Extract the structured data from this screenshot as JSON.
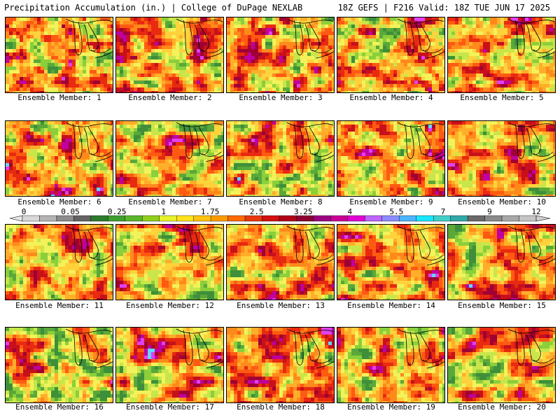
{
  "header": {
    "title": "Precipitation Accumulation (in.) | College of DuPage NEXLAB",
    "run_info": "18Z GEFS | F216 Valid: 18Z TUE JUN 17 2025"
  },
  "panels": [
    {
      "label": "Ensemble Member: 1"
    },
    {
      "label": "Ensemble Member: 2"
    },
    {
      "label": "Ensemble Member: 3"
    },
    {
      "label": "Ensemble Member: 4"
    },
    {
      "label": "Ensemble Member: 5"
    },
    {
      "label": "Ensemble Member: 6"
    },
    {
      "label": "Ensemble Member: 7"
    },
    {
      "label": "Ensemble Member: 8"
    },
    {
      "label": "Ensemble Member: 9"
    },
    {
      "label": "Ensemble Member: 10"
    },
    {
      "label": "Ensemble Member: 11"
    },
    {
      "label": "Ensemble Member: 12"
    },
    {
      "label": "Ensemble Member: 13"
    },
    {
      "label": "Ensemble Member: 14"
    },
    {
      "label": "Ensemble Member: 15"
    },
    {
      "label": "Ensemble Member: 16"
    },
    {
      "label": "Ensemble Member: 17"
    },
    {
      "label": "Ensemble Member: 18"
    },
    {
      "label": "Ensemble Member: 19"
    },
    {
      "label": "Ensemble Member: 20"
    }
  ],
  "colorbar": {
    "tick_labels": [
      "0",
      "0.05",
      "0.25",
      "1",
      "1.75",
      "2.5",
      "3.25",
      "4",
      "5.5",
      "7",
      "9",
      "12"
    ],
    "colors": [
      "#d8d8d8",
      "#b4b4b4",
      "#8c8c8c",
      "#646464",
      "#2d7a2d",
      "#3f9e2f",
      "#5ab52a",
      "#8fcf1c",
      "#e8f22a",
      "#ffe31a",
      "#ffc20e",
      "#ff9a00",
      "#ff6a00",
      "#e8380c",
      "#d40f0f",
      "#b00018",
      "#8c0030",
      "#9c0080",
      "#c80096",
      "#e000d2",
      "#bf64ff",
      "#8c8cff",
      "#4bb4ff",
      "#18e6ff",
      "#40d0c8",
      "#30a8a8",
      "#6a6a6a",
      "#8a8a8a",
      "#a8a8a8",
      "#c4c4c4"
    ]
  }
}
